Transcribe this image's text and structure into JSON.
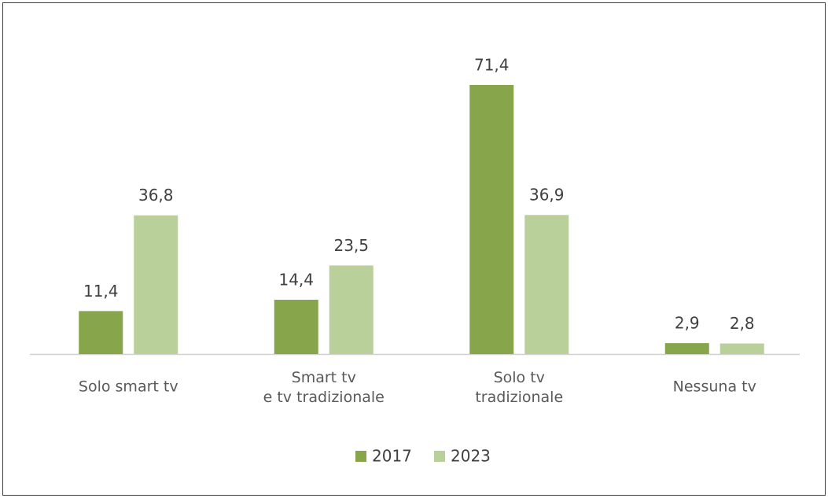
{
  "chart_data": {
    "type": "bar",
    "categories": [
      "Solo smart tv",
      "Smart tv\ne tv tradizionale",
      "Solo tv\ntradizionale",
      "Nessuna tv"
    ],
    "series": [
      {
        "name": "2017",
        "color": "#87a64c",
        "values": [
          11.4,
          14.4,
          71.4,
          2.9
        ],
        "value_labels": [
          "11,4",
          "14,4",
          "71,4",
          "2,9"
        ]
      },
      {
        "name": "2023",
        "color": "#b9d09b",
        "values": [
          36.8,
          23.5,
          36.9,
          2.8
        ],
        "value_labels": [
          "36,8",
          "23,5",
          "36,9",
          "2,8"
        ]
      }
    ],
    "legend": "bottom"
  }
}
